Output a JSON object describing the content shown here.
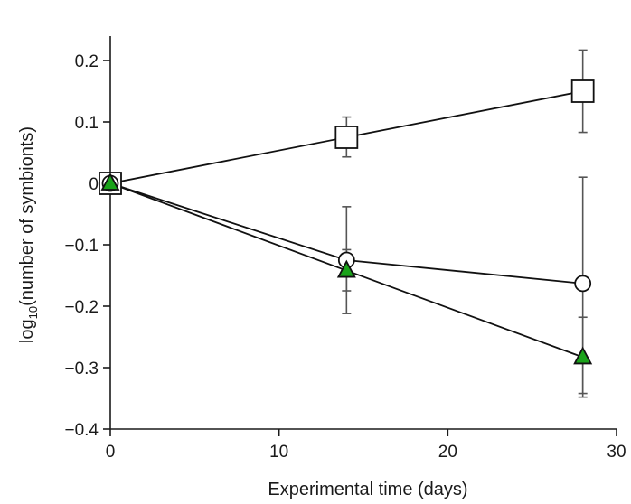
{
  "chart_data": {
    "type": "line",
    "xlabel": "Experimental time (days)",
    "ylabel_main": "log",
    "ylabel_sub": "10",
    "ylabel_rest": "(number of symbionts)",
    "xlim": [
      0,
      30
    ],
    "ylim": [
      -0.4,
      0.25
    ],
    "xticks": [
      0,
      10,
      20,
      30
    ],
    "xtick_labels": [
      "0",
      "10",
      "20",
      "30"
    ],
    "yticks": [
      0.2,
      0.1,
      0,
      -0.1,
      -0.2,
      -0.3,
      -0.4
    ],
    "ytick_labels": [
      "0.2",
      "0.1",
      "0",
      "−0.1",
      "−0.2",
      "−0.3",
      "−0.4"
    ],
    "grid": false,
    "legend": "none",
    "series": [
      {
        "marker": "square",
        "fill": "#ffffff",
        "x": [
          0,
          14,
          28
        ],
        "y": [
          0,
          0.075,
          0.15
        ],
        "err_low": [
          0,
          0.043,
          0.083
        ],
        "err_high": [
          0,
          0.108,
          0.217
        ]
      },
      {
        "marker": "circle",
        "fill": "#ffffff",
        "x": [
          0,
          14,
          28
        ],
        "y": [
          0,
          -0.125,
          -0.163
        ],
        "err_low": [
          0,
          -0.175,
          -0.348
        ],
        "err_high": [
          0,
          -0.038,
          0.01
        ]
      },
      {
        "marker": "triangle",
        "fill": "#1aa31a",
        "x": [
          0,
          14,
          28
        ],
        "y": [
          0,
          -0.142,
          -0.283
        ],
        "err_low": [
          0,
          -0.212,
          -0.342
        ],
        "err_high": [
          0,
          -0.108,
          -0.218
        ]
      }
    ]
  }
}
